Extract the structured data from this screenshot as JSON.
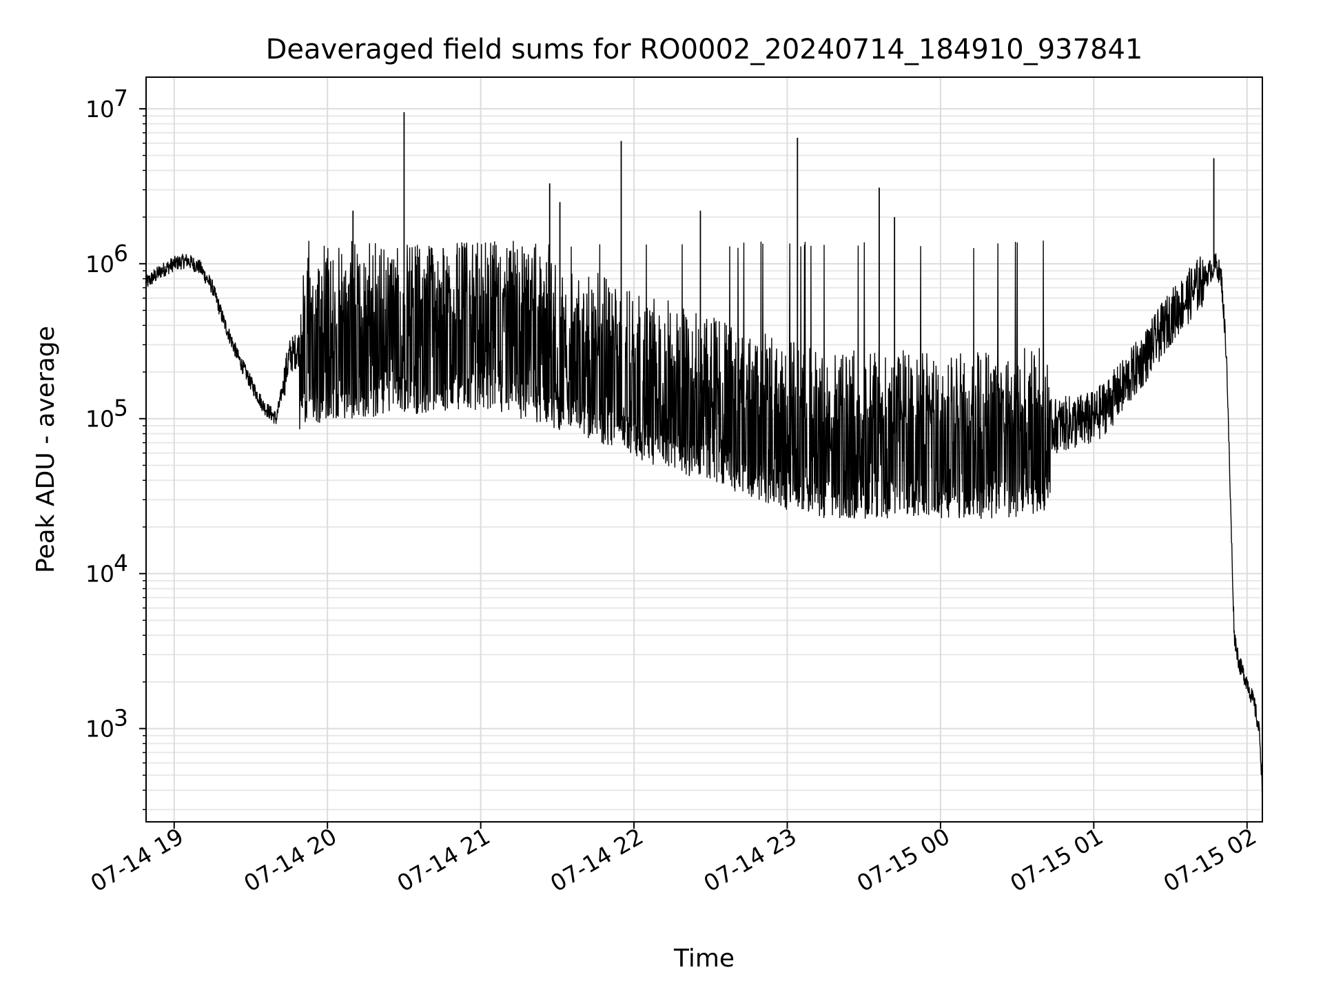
{
  "chart_data": {
    "type": "line",
    "title": "Deaveraged field sums for RO0002_20240714_184910_937841",
    "xlabel": "Time",
    "ylabel": "Peak ADU - average",
    "yscale": "log",
    "ylim": [
      250,
      16000000
    ],
    "xlim": [
      "2024-07-14 18:49",
      "2024-07-15 02:06"
    ],
    "grid": true,
    "line_color": "#000000",
    "x_ticks": [
      {
        "label": "07-14 19",
        "time": "2024-07-14 19:00"
      },
      {
        "label": "07-14 20",
        "time": "2024-07-14 20:00"
      },
      {
        "label": "07-14 21",
        "time": "2024-07-14 21:00"
      },
      {
        "label": "07-14 22",
        "time": "2024-07-14 22:00"
      },
      {
        "label": "07-14 23",
        "time": "2024-07-14 23:00"
      },
      {
        "label": "07-15 00",
        "time": "2024-07-15 00:00"
      },
      {
        "label": "07-15 01",
        "time": "2024-07-15 01:00"
      },
      {
        "label": "07-15 02",
        "time": "2024-07-15 02:00"
      }
    ],
    "y_ticks": [
      {
        "base": "10",
        "exp": "3",
        "value": 1000
      },
      {
        "base": "10",
        "exp": "4",
        "value": 10000
      },
      {
        "base": "10",
        "exp": "5",
        "value": 100000
      },
      {
        "base": "10",
        "exp": "6",
        "value": 1000000
      },
      {
        "base": "10",
        "exp": "7",
        "value": 10000000
      }
    ],
    "series": [
      {
        "points": [
          [
            "2024-07-14 18:49",
            750000
          ],
          [
            "2024-07-14 18:55",
            900000
          ],
          [
            "2024-07-14 19:00",
            1000000
          ],
          [
            "2024-07-14 19:05",
            1050000
          ],
          [
            "2024-07-14 19:10",
            950000
          ],
          [
            "2024-07-14 19:15",
            700000
          ],
          [
            "2024-07-14 19:20",
            400000
          ],
          [
            "2024-07-14 19:25",
            250000
          ],
          [
            "2024-07-14 19:30",
            170000
          ],
          [
            "2024-07-14 19:35",
            120000
          ],
          [
            "2024-07-14 19:40",
            100000
          ],
          [
            "2024-07-14 19:45",
            250000
          ],
          [
            "2024-07-14 19:50",
            300000
          ],
          [
            "2024-07-14 20:00",
            350000
          ],
          [
            "2024-07-14 20:15",
            350000
          ],
          [
            "2024-07-14 20:30",
            380000
          ],
          [
            "2024-07-14 20:45",
            380000
          ],
          [
            "2024-07-14 21:00",
            400000
          ],
          [
            "2024-07-14 21:15",
            350000
          ],
          [
            "2024-07-14 21:30",
            300000
          ],
          [
            "2024-07-14 21:45",
            250000
          ],
          [
            "2024-07-14 22:00",
            200000
          ],
          [
            "2024-07-14 22:15",
            160000
          ],
          [
            "2024-07-14 22:30",
            140000
          ],
          [
            "2024-07-14 22:45",
            110000
          ],
          [
            "2024-07-14 23:00",
            90000
          ],
          [
            "2024-07-14 23:15",
            80000
          ],
          [
            "2024-07-14 23:30",
            80000
          ],
          [
            "2024-07-14 23:45",
            80000
          ],
          [
            "2024-07-15 00:00",
            80000
          ],
          [
            "2024-07-15 00:15",
            80000
          ],
          [
            "2024-07-15 00:30",
            80000
          ],
          [
            "2024-07-15 00:45",
            90000
          ],
          [
            "2024-07-15 01:00",
            100000
          ],
          [
            "2024-07-15 01:10",
            150000
          ],
          [
            "2024-07-15 01:20",
            250000
          ],
          [
            "2024-07-15 01:30",
            450000
          ],
          [
            "2024-07-15 01:40",
            700000
          ],
          [
            "2024-07-15 01:48",
            1000000
          ],
          [
            "2024-07-15 01:50",
            800000
          ],
          [
            "2024-07-15 01:52",
            250000
          ],
          [
            "2024-07-15 01:53",
            60000
          ],
          [
            "2024-07-15 01:54",
            15000
          ],
          [
            "2024-07-15 01:55",
            4000
          ],
          [
            "2024-07-15 01:57",
            2600
          ],
          [
            "2024-07-15 02:00",
            2000
          ],
          [
            "2024-07-15 02:03",
            1400
          ],
          [
            "2024-07-15 02:05",
            900
          ],
          [
            "2024-07-15 02:06",
            400
          ]
        ],
        "spikes": [
          [
            "2024-07-14 20:10",
            2200000
          ],
          [
            "2024-07-14 20:30",
            9500000
          ],
          [
            "2024-07-14 21:27",
            3300000
          ],
          [
            "2024-07-14 21:31",
            2500000
          ],
          [
            "2024-07-14 21:55",
            6200000
          ],
          [
            "2024-07-14 22:26",
            2200000
          ],
          [
            "2024-07-14 23:04",
            6500000
          ],
          [
            "2024-07-14 23:36",
            3100000
          ],
          [
            "2024-07-14 23:42",
            2000000
          ],
          [
            "2024-07-15 01:47",
            4800000
          ]
        ]
      }
    ]
  }
}
